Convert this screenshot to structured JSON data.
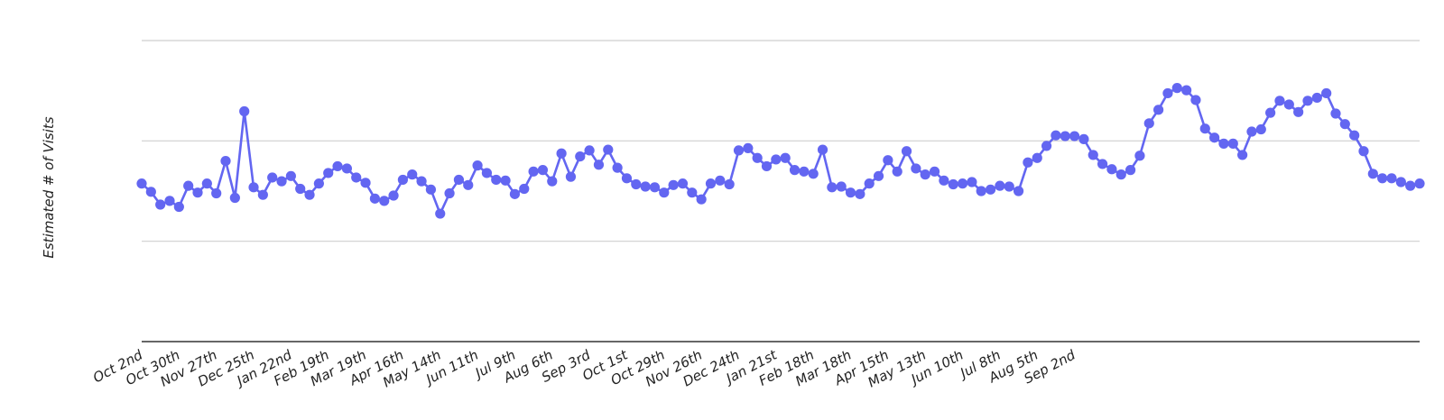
{
  "chart_data": {
    "type": "line",
    "title": "",
    "xlabel": "",
    "ylabel": "Estimated # of Visits",
    "color": "#6366f1",
    "grid": true,
    "gridline_count": 3,
    "tick_labels": [
      "Oct 2nd",
      "Oct 30th",
      "Nov 27th",
      "Dec 25th",
      "Jan 22nd",
      "Feb 19th",
      "Mar 19th",
      "Apr 16th",
      "May 14th",
      "Jun 11th",
      "Jul 9th",
      "Aug 6th",
      "Sep 3rd",
      "Oct 1st",
      "Oct 29th",
      "Nov 26th",
      "Dec 24th",
      "Jan 21st",
      "Feb 18th",
      "Mar 18th",
      "Apr 15th",
      "May 13th",
      "Jun 10th",
      "Jul 8th",
      "Aug 5th",
      "Sep 2nd"
    ],
    "tick_every": 4,
    "values": [
      1.1,
      0.99,
      0.82,
      0.87,
      0.79,
      1.07,
      0.98,
      1.1,
      0.97,
      1.4,
      0.91,
      2.06,
      1.05,
      0.95,
      1.18,
      1.13,
      1.2,
      1.03,
      0.95,
      1.1,
      1.24,
      1.33,
      1.3,
      1.18,
      1.11,
      0.9,
      0.87,
      0.94,
      1.15,
      1.22,
      1.13,
      1.02,
      0.7,
      0.97,
      1.15,
      1.08,
      1.34,
      1.24,
      1.15,
      1.14,
      0.96,
      1.03,
      1.26,
      1.28,
      1.13,
      1.5,
      1.19,
      1.46,
      1.54,
      1.35,
      1.55,
      1.31,
      1.17,
      1.09,
      1.06,
      1.05,
      0.98,
      1.08,
      1.1,
      0.98,
      0.89,
      1.1,
      1.14,
      1.09,
      1.54,
      1.57,
      1.44,
      1.33,
      1.42,
      1.44,
      1.28,
      1.26,
      1.23,
      1.55,
      1.05,
      1.06,
      0.98,
      0.96,
      1.1,
      1.2,
      1.41,
      1.26,
      1.53,
      1.3,
      1.22,
      1.26,
      1.14,
      1.09,
      1.1,
      1.12,
      1.0,
      1.02,
      1.07,
      1.06,
      1.0,
      1.38,
      1.44,
      1.6,
      1.74,
      1.73,
      1.73,
      1.69,
      1.48,
      1.36,
      1.29,
      1.22,
      1.28,
      1.47,
      1.9,
      2.08,
      2.3,
      2.37,
      2.34,
      2.21,
      1.83,
      1.71,
      1.63,
      1.63,
      1.48,
      1.79,
      1.82,
      2.04,
      2.2,
      2.15,
      2.05,
      2.2,
      2.24,
      2.3,
      2.03,
      1.89,
      1.74,
      1.53,
      1.23,
      1.17,
      1.17,
      1.12,
      1.07,
      1.1
    ],
    "ylim": [
      -1,
      3
    ]
  }
}
